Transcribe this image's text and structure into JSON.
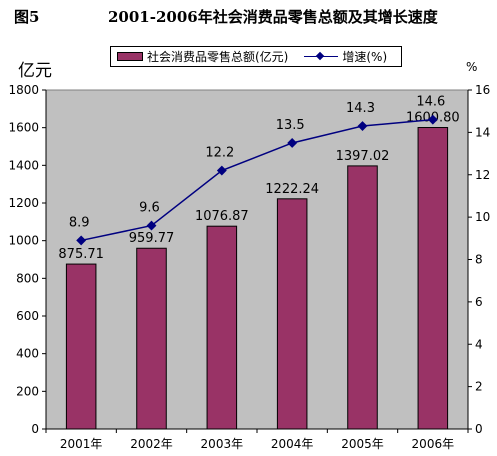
{
  "figure": {
    "label": "图5",
    "title": "2001-2006年社会消费品零售总额及其增长速度"
  },
  "units": {
    "left": "亿元",
    "right": "%"
  },
  "legend": {
    "bar_label": "社会消费品零售总额(亿元)",
    "line_label": "增速(%)"
  },
  "colors": {
    "bar": "#993366",
    "line": "#000080",
    "plot_bg": "#c0c0c0"
  },
  "chart_data": {
    "type": "bar",
    "categories": [
      "2001年",
      "2002年",
      "2003年",
      "2004年",
      "2005年",
      "2006年"
    ],
    "series": [
      {
        "name": "社会消费品零售总额(亿元)",
        "type": "bar",
        "axis": "left",
        "values": [
          875.71,
          959.77,
          1076.87,
          1222.24,
          1397.02,
          1600.8
        ],
        "labels": [
          "875.71",
          "959.77",
          "1076.87",
          "1222.24",
          "1397.02",
          "1600.80"
        ]
      },
      {
        "name": "增速(%)",
        "type": "line",
        "axis": "right",
        "values": [
          8.9,
          9.6,
          12.2,
          13.5,
          14.3,
          14.6
        ],
        "labels": [
          "8.9",
          "9.6",
          "12.2",
          "13.5",
          "14.3",
          "14.6"
        ]
      }
    ],
    "y_left": {
      "range": [
        0,
        1800
      ],
      "ticks": [
        "0",
        "200",
        "400",
        "600",
        "800",
        "1000",
        "1200",
        "1400",
        "1600",
        "1800"
      ]
    },
    "y_right": {
      "range": [
        0,
        16
      ],
      "ticks": [
        "0",
        "2",
        "4",
        "6",
        "8",
        "10",
        "12",
        "14",
        "16"
      ]
    },
    "grid": false,
    "legend_position": "top"
  }
}
